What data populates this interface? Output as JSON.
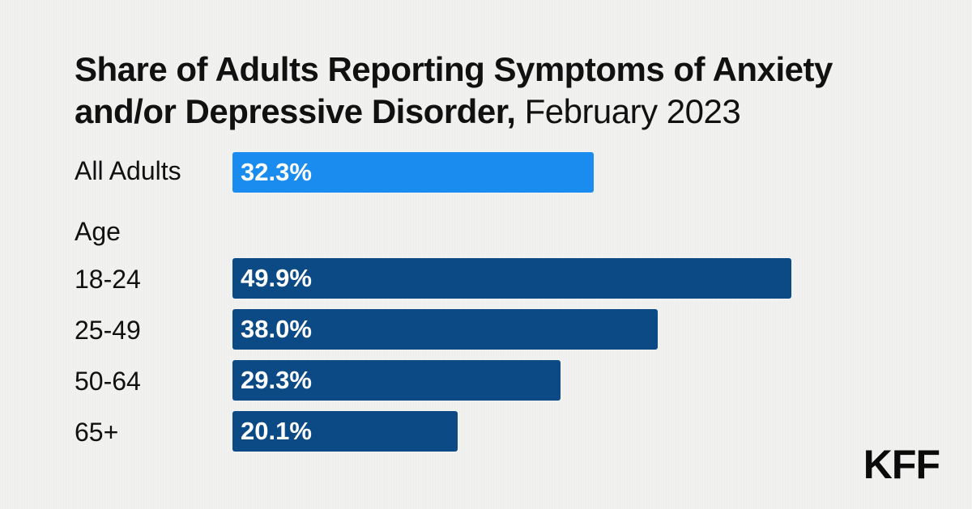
{
  "title": {
    "bold": "Share of Adults Reporting Symptoms of Anxiety and/or Depressive Disorder,",
    "light": "February 2023"
  },
  "logo": "KFF",
  "colors": {
    "all_adults_bar": "#1a8cf0",
    "age_bar": "#0c4a86",
    "bar_text": "#ffffff",
    "background": "#f1f1f0"
  },
  "chart_data": {
    "type": "bar",
    "orientation": "horizontal",
    "xlim": [
      0,
      55
    ],
    "grid": false,
    "groups": [
      {
        "label": "",
        "categories": [
          "All Adults"
        ],
        "values": [
          32.3
        ],
        "value_labels": [
          "32.3%"
        ]
      },
      {
        "label": "Age",
        "categories": [
          "18-24",
          "25-49",
          "50-64",
          "65+"
        ],
        "values": [
          49.9,
          38.0,
          29.3,
          20.1
        ],
        "value_labels": [
          "49.9%",
          "38.0%",
          "29.3%",
          "20.1%"
        ]
      }
    ]
  }
}
